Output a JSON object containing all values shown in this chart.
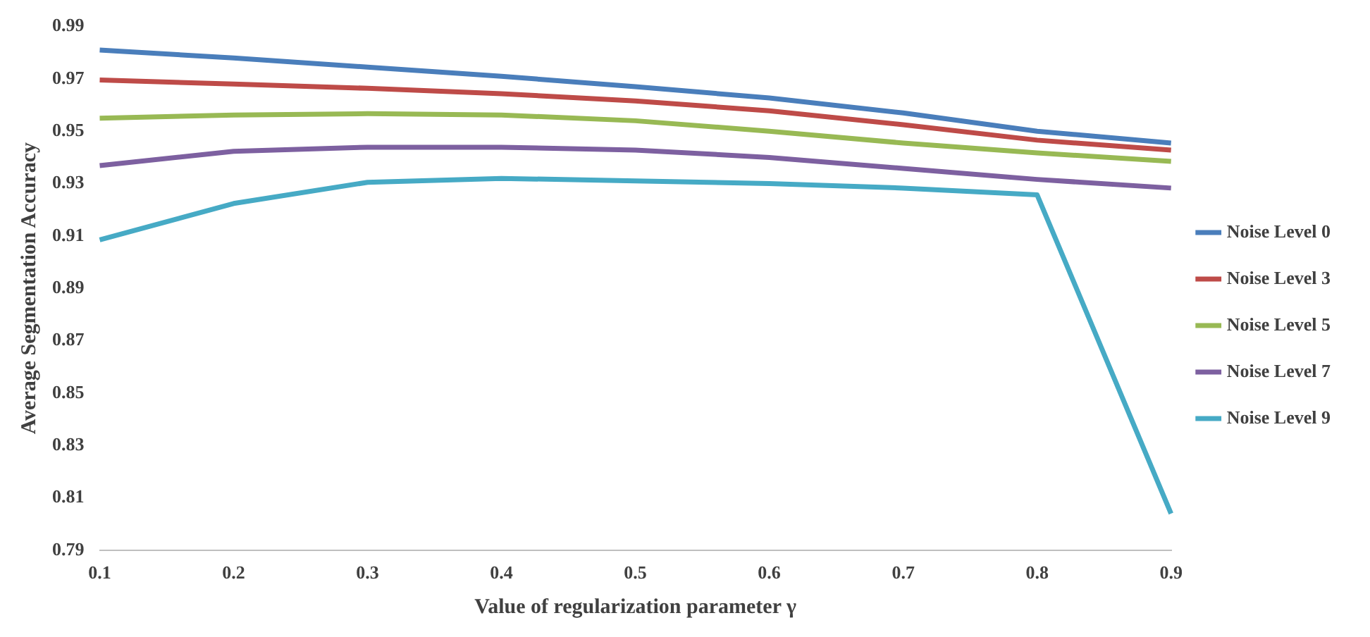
{
  "chart_data": {
    "type": "line",
    "xlabel": "Value of regularization parameter γ",
    "ylabel": "Average Segmentation Accuracy",
    "categories": [
      "0.1",
      "0.2",
      "0.3",
      "0.4",
      "0.5",
      "0.6",
      "0.7",
      "0.8",
      "0.9"
    ],
    "series": [
      {
        "name": "Noise Level 0",
        "color": "#4a7ebb",
        "values": [
          0.981,
          0.978,
          0.9745,
          0.971,
          0.967,
          0.9627,
          0.957,
          0.95,
          0.9455
        ]
      },
      {
        "name": "Noise Level 3",
        "color": "#be4b48",
        "values": [
          0.9696,
          0.968,
          0.9664,
          0.9643,
          0.9616,
          0.9578,
          0.9525,
          0.9466,
          0.9428
        ]
      },
      {
        "name": "Noise Level 5",
        "color": "#98b954",
        "values": [
          0.955,
          0.9562,
          0.9567,
          0.9562,
          0.954,
          0.95,
          0.9455,
          0.9417,
          0.9385
        ]
      },
      {
        "name": "Noise Level 7",
        "color": "#7d60a0",
        "values": [
          0.9369,
          0.9423,
          0.9439,
          0.9439,
          0.9428,
          0.94,
          0.9358,
          0.9316,
          0.9283
        ]
      },
      {
        "name": "Noise Level 9",
        "color": "#46aac5",
        "values": [
          0.9085,
          0.9224,
          0.9305,
          0.932,
          0.931,
          0.93,
          0.9283,
          0.9257,
          0.804
        ]
      }
    ],
    "ylim": [
      0.79,
      0.99
    ],
    "yticks": [
      0.79,
      0.81,
      0.83,
      0.85,
      0.87,
      0.89,
      0.91,
      0.93,
      0.95,
      0.97,
      0.99
    ],
    "grid": false,
    "legend": "right",
    "marker": "none",
    "line_style": "solid"
  }
}
